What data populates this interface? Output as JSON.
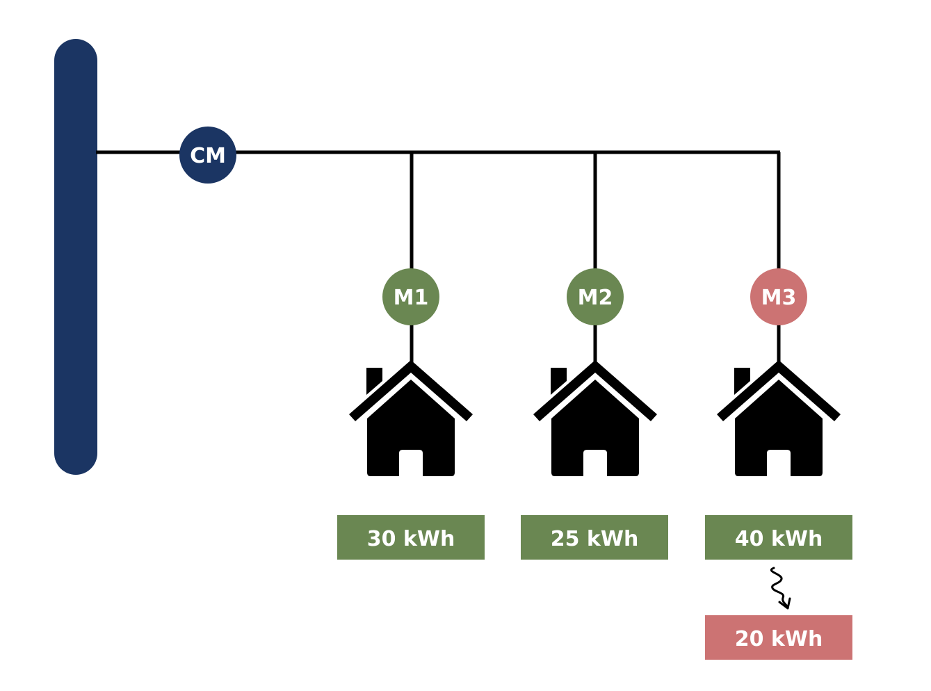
{
  "colors": {
    "navy": "#1b3563",
    "green": "#6a8752",
    "red": "#cc7373",
    "line": "#000000",
    "house": "#000000"
  },
  "central_meter": {
    "label": "CM",
    "color": "navy"
  },
  "meters": [
    {
      "label": "M1",
      "color": "green",
      "consumption": "30 kWh",
      "consumption_color": "green",
      "icon": "house-icon"
    },
    {
      "label": "M2",
      "color": "green",
      "consumption": "25 kWh",
      "consumption_color": "green",
      "icon": "house-icon"
    },
    {
      "label": "M3",
      "color": "red",
      "consumption": "40 kWh",
      "consumption_color": "green",
      "icon": "house-icon",
      "adjusted": {
        "value": "20 kWh",
        "color": "red",
        "icon": "squiggle-arrow-icon"
      }
    }
  ]
}
